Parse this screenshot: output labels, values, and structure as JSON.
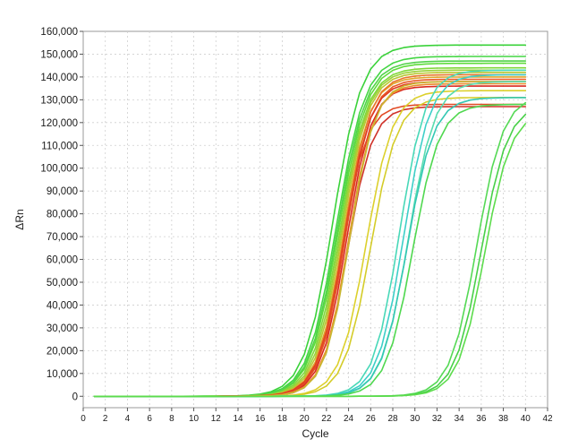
{
  "chart_data": {
    "type": "line",
    "title": "",
    "xlabel": "Cycle",
    "ylabel": "ΔRn",
    "xlim": [
      0,
      42
    ],
    "ylim": [
      -5000,
      160000
    ],
    "x_ticks": [
      0,
      2,
      4,
      6,
      8,
      10,
      12,
      14,
      16,
      18,
      20,
      22,
      24,
      26,
      28,
      30,
      32,
      34,
      36,
      38,
      40,
      42
    ],
    "y_ticks": [
      0,
      10000,
      20000,
      30000,
      40000,
      50000,
      60000,
      70000,
      80000,
      90000,
      100000,
      110000,
      120000,
      130000,
      140000,
      150000,
      160000
    ],
    "y_tick_labels": [
      "0",
      "10,000",
      "20,000",
      "30,000",
      "40,000",
      "50,000",
      "60,000",
      "70,000",
      "80,000",
      "90,000",
      "100,000",
      "110,000",
      "120,000",
      "130,000",
      "140,000",
      "150,000",
      "160,000"
    ],
    "grid": true,
    "legend": "none",
    "cycles": [
      1,
      40
    ],
    "x": [
      1,
      2,
      3,
      4,
      5,
      6,
      7,
      8,
      9,
      10,
      11,
      12,
      13,
      14,
      15,
      16,
      17,
      18,
      19,
      20,
      21,
      22,
      23,
      24,
      25,
      26,
      27,
      28,
      29,
      30,
      31,
      32,
      33,
      34,
      35,
      36,
      37,
      38,
      39,
      40
    ],
    "curve_model": "sigmoid",
    "series": [
      {
        "color": "#3ad23a",
        "plateau": 154000,
        "ct": 22.6,
        "slope": 1.3
      },
      {
        "color": "#44d644",
        "plateau": 149000,
        "ct": 22.9,
        "slope": 1.3
      },
      {
        "color": "#5fdc3a",
        "plateau": 146000,
        "ct": 23.1,
        "slope": 1.28
      },
      {
        "color": "#7fd83a",
        "plateau": 144000,
        "ct": 23.2,
        "slope": 1.25
      },
      {
        "color": "#52d34a",
        "plateau": 147000,
        "ct": 23.0,
        "slope": 1.28
      },
      {
        "color": "#9ad23a",
        "plateau": 143000,
        "ct": 23.3,
        "slope": 1.22
      },
      {
        "color": "#b8c832",
        "plateau": 142000,
        "ct": 23.4,
        "slope": 1.2
      },
      {
        "color": "#e0a52a",
        "plateau": 140000,
        "ct": 23.5,
        "slope": 1.18
      },
      {
        "color": "#e8742a",
        "plateau": 141000,
        "ct": 23.6,
        "slope": 1.18
      },
      {
        "color": "#e85a26",
        "plateau": 139000,
        "ct": 23.7,
        "slope": 1.16
      },
      {
        "color": "#e03a22",
        "plateau": 138000,
        "ct": 23.6,
        "slope": 1.18
      },
      {
        "color": "#d82a22",
        "plateau": 136000,
        "ct": 23.8,
        "slope": 1.15
      },
      {
        "color": "#e24a24",
        "plateau": 128000,
        "ct": 23.4,
        "slope": 1.1
      },
      {
        "color": "#d0322a",
        "plateau": 127000,
        "ct": 23.9,
        "slope": 1.12
      },
      {
        "color": "#ea8c2c",
        "plateau": 137000,
        "ct": 24.0,
        "slope": 1.15
      },
      {
        "color": "#c8b832",
        "plateau": 138000,
        "ct": 24.1,
        "slope": 1.15
      },
      {
        "color": "#dcd02c",
        "plateau": 134000,
        "ct": 25.6,
        "slope": 1.2
      },
      {
        "color": "#d4cc28",
        "plateau": 131000,
        "ct": 26.0,
        "slope": 1.2
      },
      {
        "color": "#48d8b8",
        "plateau": 143000,
        "ct": 28.6,
        "slope": 1.18
      },
      {
        "color": "#3ccfc8",
        "plateau": 141000,
        "ct": 29.0,
        "slope": 1.18
      },
      {
        "color": "#58dcb0",
        "plateau": 138000,
        "ct": 29.4,
        "slope": 1.2
      },
      {
        "color": "#34c8b4",
        "plateau": 131000,
        "ct": 29.3,
        "slope": 1.2
      },
      {
        "color": "#4fd84f",
        "plateau": 128000,
        "ct": 29.8,
        "slope": 1.2
      },
      {
        "color": "#55d955",
        "plateau": 132000,
        "ct": 35.6,
        "slope": 1.2
      },
      {
        "color": "#48d048",
        "plateau": 128000,
        "ct": 36.0,
        "slope": 1.2
      },
      {
        "color": "#5cdc4c",
        "plateau": 125000,
        "ct": 36.3,
        "slope": 1.2
      }
    ]
  }
}
